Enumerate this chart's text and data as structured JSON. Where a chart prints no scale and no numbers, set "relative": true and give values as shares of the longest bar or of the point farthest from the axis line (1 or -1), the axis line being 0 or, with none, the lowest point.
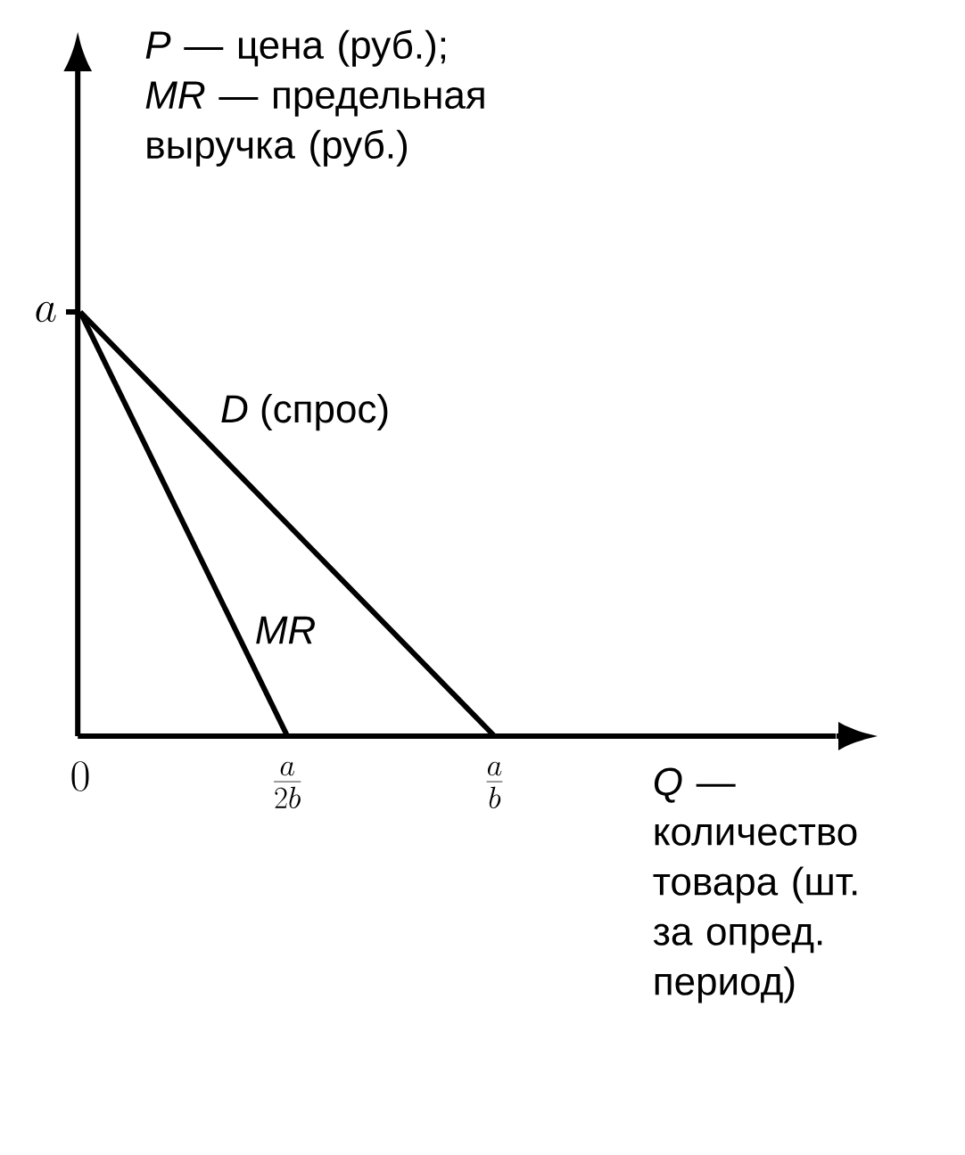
{
  "chart_data": {
    "type": "line",
    "relative": true,
    "xlabel": "*Q* — количество товара (шт. за опред. период)",
    "ylabel": "*P* — цена (руб.); *MR* — предельная выручка (руб.)",
    "categories": [
      "0",
      "\\frac{a}{2b}",
      "\\frac{a}{b}"
    ],
    "series": [
      {
        "name": "*D* (спрос)",
        "color": "#000000",
        "values": [
          1,
          0.5,
          0
        ]
      },
      {
        "name": "*MR*",
        "color": "#000000",
        "values": [
          1,
          0,
          null
        ]
      }
    ],
    "annotations": [
      "a"
    ],
    "legend": false,
    "line_style": "solid"
  }
}
